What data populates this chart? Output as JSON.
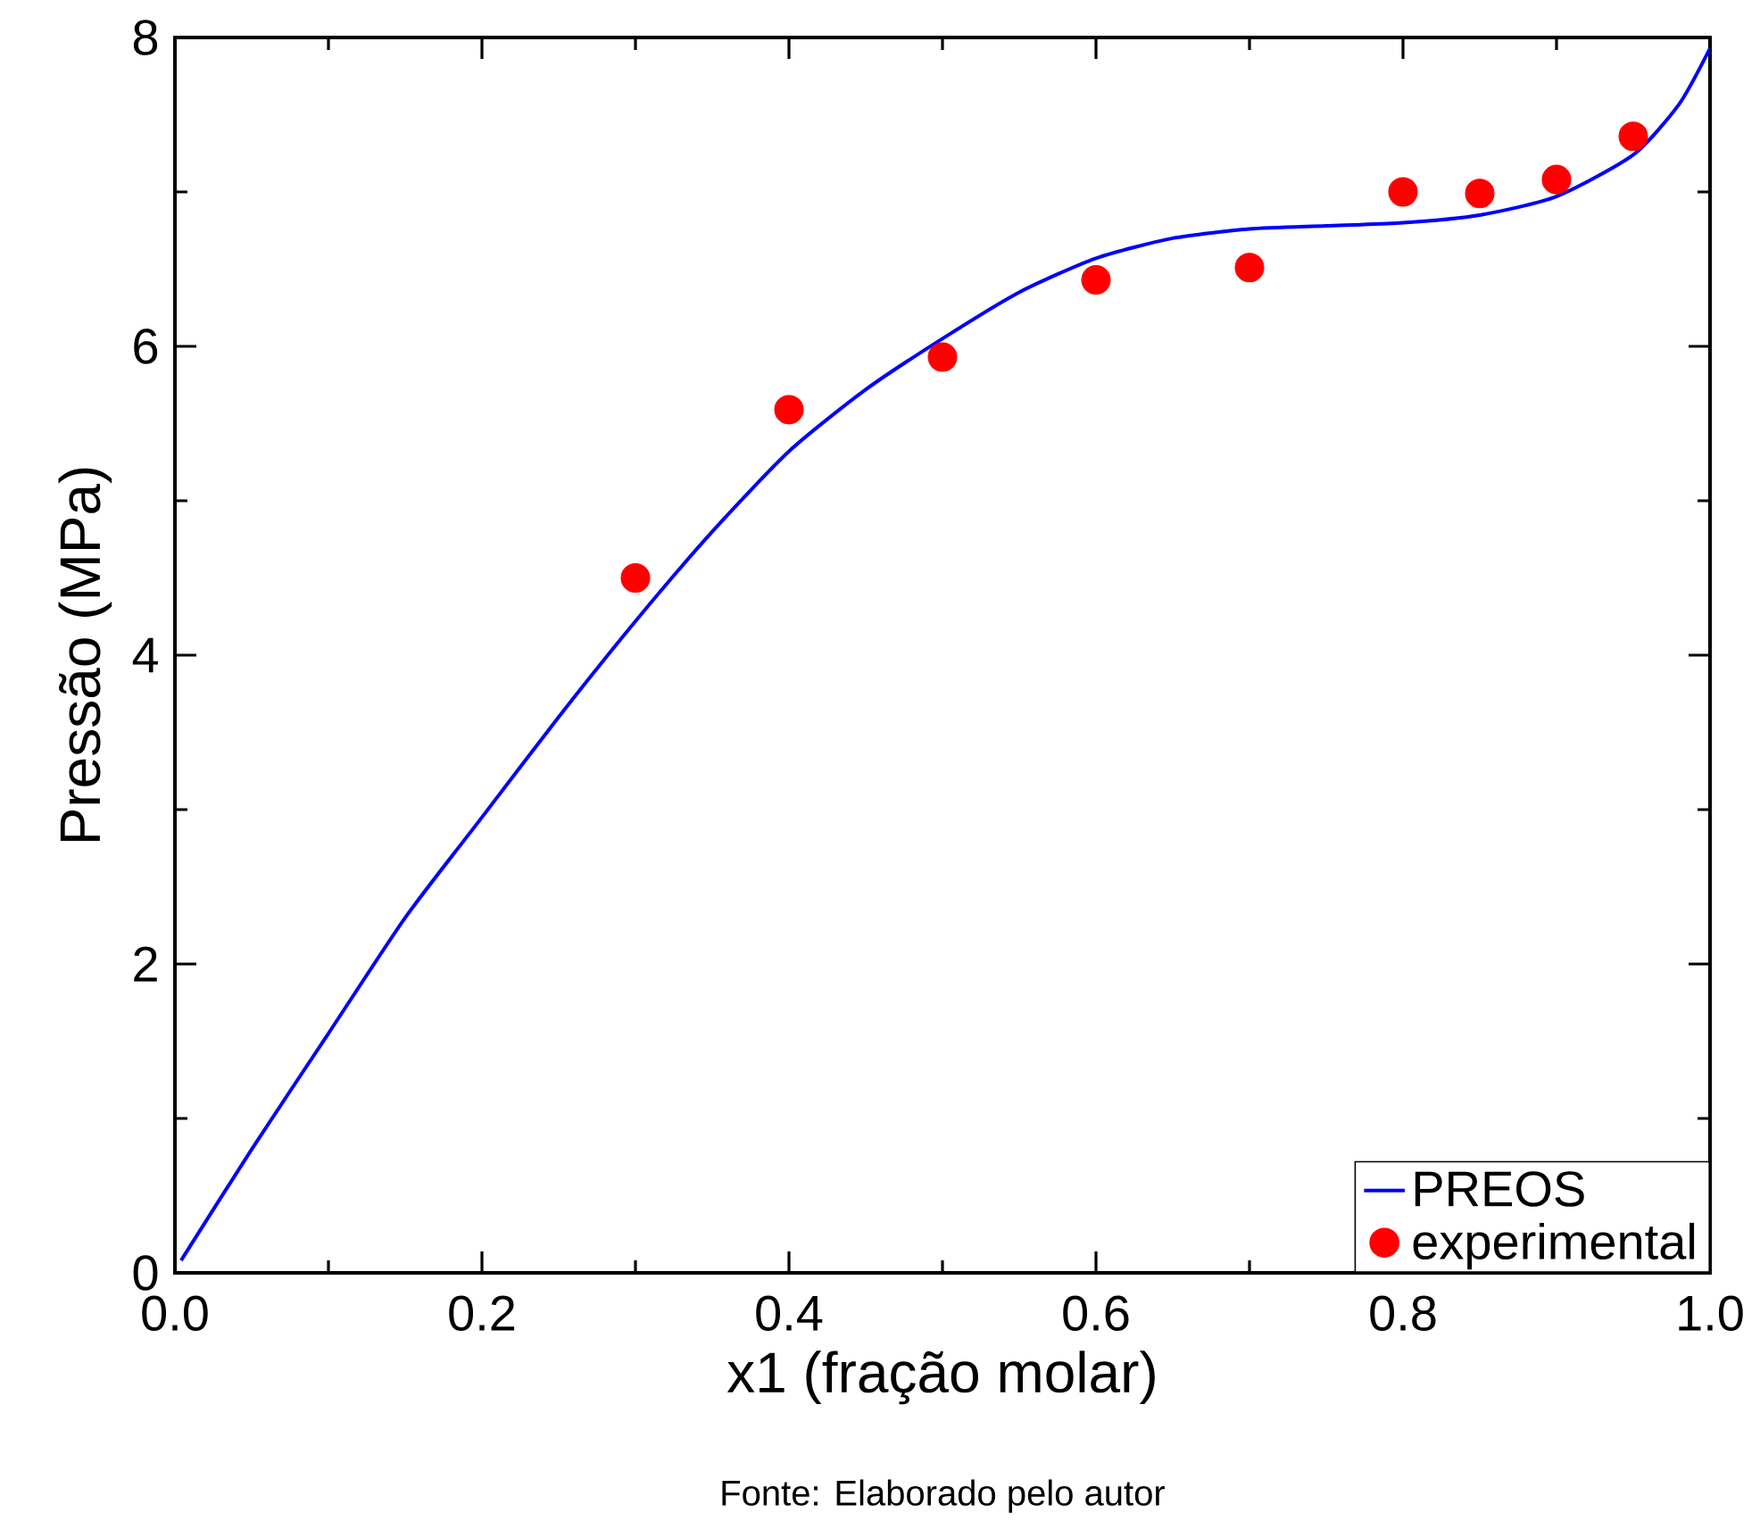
{
  "chart_data": {
    "type": "line",
    "xlabel": "x1 (fração molar)",
    "ylabel": "Pressão (MPa)",
    "annotations": [
      "Fonte: Elaborado pelo autor"
    ],
    "xlim": [
      0,
      1
    ],
    "ylim": [
      0,
      8
    ],
    "xticks": [
      {
        "value": 0,
        "label": "0.0"
      },
      0.2,
      0.4,
      0.6,
      0.8,
      {
        "value": 1,
        "label": "1.0"
      }
    ],
    "yticks": [
      0,
      2,
      4,
      6,
      8
    ],
    "legend": "bottom right",
    "grid": false,
    "series": [
      {
        "name": "PREOS",
        "color": "#0000ff",
        "marker": "none",
        "line_style": "solid",
        "x": [
          0.004,
          0.05,
          0.1,
          0.15,
          0.2,
          0.25,
          0.3,
          0.35,
          0.4,
          0.45,
          0.5,
          0.55,
          0.6,
          0.65,
          0.7,
          0.75,
          0.8,
          0.85,
          0.9,
          0.95,
          0.98,
          1.0
        ],
        "values": [
          0.08,
          0.8,
          1.55,
          2.3,
          2.95,
          3.6,
          4.22,
          4.8,
          5.32,
          5.72,
          6.05,
          6.35,
          6.57,
          6.7,
          6.76,
          6.78,
          6.8,
          6.85,
          6.97,
          7.24,
          7.57,
          7.93
        ]
      },
      {
        "name": "experimental",
        "type": "scatter",
        "color": "#ff0000",
        "marker": "circle",
        "x": [
          0.3,
          0.4,
          0.5,
          0.6,
          0.7,
          0.8,
          0.85,
          0.9,
          0.95
        ],
        "values": [
          4.5,
          5.59,
          5.93,
          6.43,
          6.51,
          7.0,
          6.99,
          7.08,
          7.36
        ]
      }
    ]
  }
}
